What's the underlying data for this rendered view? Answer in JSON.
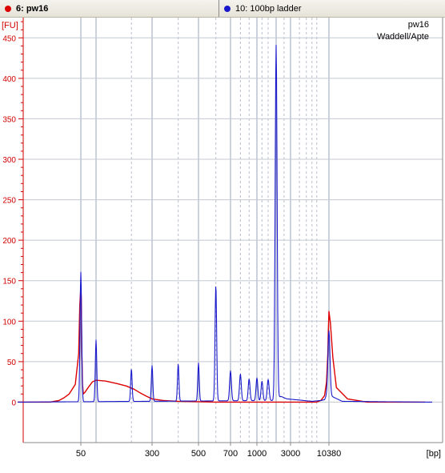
{
  "tabs": [
    {
      "label": "6: pw16",
      "dot_color": "#dd0000"
    },
    {
      "label": "10: 100bp ladder",
      "dot_color": "#1a1acc"
    }
  ],
  "chart_data": {
    "type": "line",
    "y_unit": "[FU]",
    "x_unit": "[bp]",
    "info_lines": [
      "pw16",
      "Waddell/Apte"
    ],
    "ylim": [
      -50,
      475
    ],
    "grid": true,
    "y_ticks": [
      0,
      50,
      100,
      150,
      200,
      250,
      300,
      350,
      400,
      450
    ],
    "x_ticks": [
      {
        "label": "50",
        "bp": 50
      },
      {
        "label": "300",
        "bp": 300
      },
      {
        "label": "500",
        "bp": 500
      },
      {
        "label": "700",
        "bp": 700
      },
      {
        "label": "1000",
        "bp": 1000
      },
      {
        "label": "3000",
        "bp": 3000
      },
      {
        "label": "10380",
        "bp": 10380
      }
    ],
    "ladder_sizes_bp": [
      50,
      100,
      200,
      300,
      400,
      500,
      600,
      700,
      800,
      900,
      1000,
      1200,
      1500,
      2000,
      2500,
      3000,
      4000,
      5000,
      6000,
      7000,
      10380
    ],
    "series": [
      {
        "name": "6: pw16",
        "color": "#dd0000",
        "points": [
          [
            15,
            0
          ],
          [
            28,
            0
          ],
          [
            30,
            1
          ],
          [
            33,
            2
          ],
          [
            36,
            5
          ],
          [
            40,
            10
          ],
          [
            45,
            22
          ],
          [
            48,
            60
          ],
          [
            49,
            120
          ],
          [
            50,
            142
          ],
          [
            51,
            130
          ],
          [
            52,
            70
          ],
          [
            54,
            22
          ],
          [
            56,
            10
          ],
          [
            60,
            12
          ],
          [
            70,
            18
          ],
          [
            85,
            25
          ],
          [
            100,
            27
          ],
          [
            120,
            26
          ],
          [
            150,
            23
          ],
          [
            180,
            20
          ],
          [
            210,
            16
          ],
          [
            240,
            11
          ],
          [
            270,
            7
          ],
          [
            300,
            4
          ],
          [
            340,
            2
          ],
          [
            400,
            1
          ],
          [
            600,
            0
          ],
          [
            1500,
            0
          ],
          [
            5000,
            0
          ],
          [
            7000,
            0
          ],
          [
            8000,
            2
          ],
          [
            9000,
            8
          ],
          [
            9600,
            25
          ],
          [
            10000,
            60
          ],
          [
            10200,
            90
          ],
          [
            10380,
            112
          ],
          [
            10500,
            98
          ],
          [
            10700,
            55
          ],
          [
            11000,
            18
          ],
          [
            12000,
            4
          ],
          [
            14000,
            0
          ],
          [
            22000,
            0
          ]
        ]
      },
      {
        "name": "10: 100bp ladder",
        "color": "#1a1acc",
        "baseline": [
          [
            15,
            0
          ],
          [
            1900,
            2
          ],
          [
            2000,
            5
          ],
          [
            2300,
            7
          ],
          [
            2700,
            4
          ],
          [
            3500,
            3
          ],
          [
            6000,
            1
          ],
          [
            8000,
            2
          ],
          [
            9000,
            3
          ],
          [
            9600,
            8
          ],
          [
            10500,
            8
          ],
          [
            11500,
            1
          ],
          [
            22000,
            0
          ]
        ],
        "peaks": [
          {
            "bp": 50,
            "fu": 160,
            "width": 1.0
          },
          {
            "bp": 100,
            "fu": 76,
            "width": 0.9
          },
          {
            "bp": 200,
            "fu": 40,
            "width": 0.9
          },
          {
            "bp": 300,
            "fu": 44,
            "width": 0.9
          },
          {
            "bp": 400,
            "fu": 46,
            "width": 0.9
          },
          {
            "bp": 500,
            "fu": 47,
            "width": 0.9
          },
          {
            "bp": 600,
            "fu": 143,
            "width": 1.0
          },
          {
            "bp": 700,
            "fu": 37,
            "width": 1.1
          },
          {
            "bp": 800,
            "fu": 33,
            "width": 1.1
          },
          {
            "bp": 900,
            "fu": 27,
            "width": 1.1
          },
          {
            "bp": 1000,
            "fu": 28,
            "width": 1.1
          },
          {
            "bp": 1200,
            "fu": 24,
            "width": 1.1
          },
          {
            "bp": 1500,
            "fu": 26,
            "width": 1.2
          },
          {
            "bp": 2000,
            "fu": 436,
            "width": 1.2
          },
          {
            "bp": 10380,
            "fu": 80,
            "width": 1.3
          }
        ]
      }
    ]
  }
}
